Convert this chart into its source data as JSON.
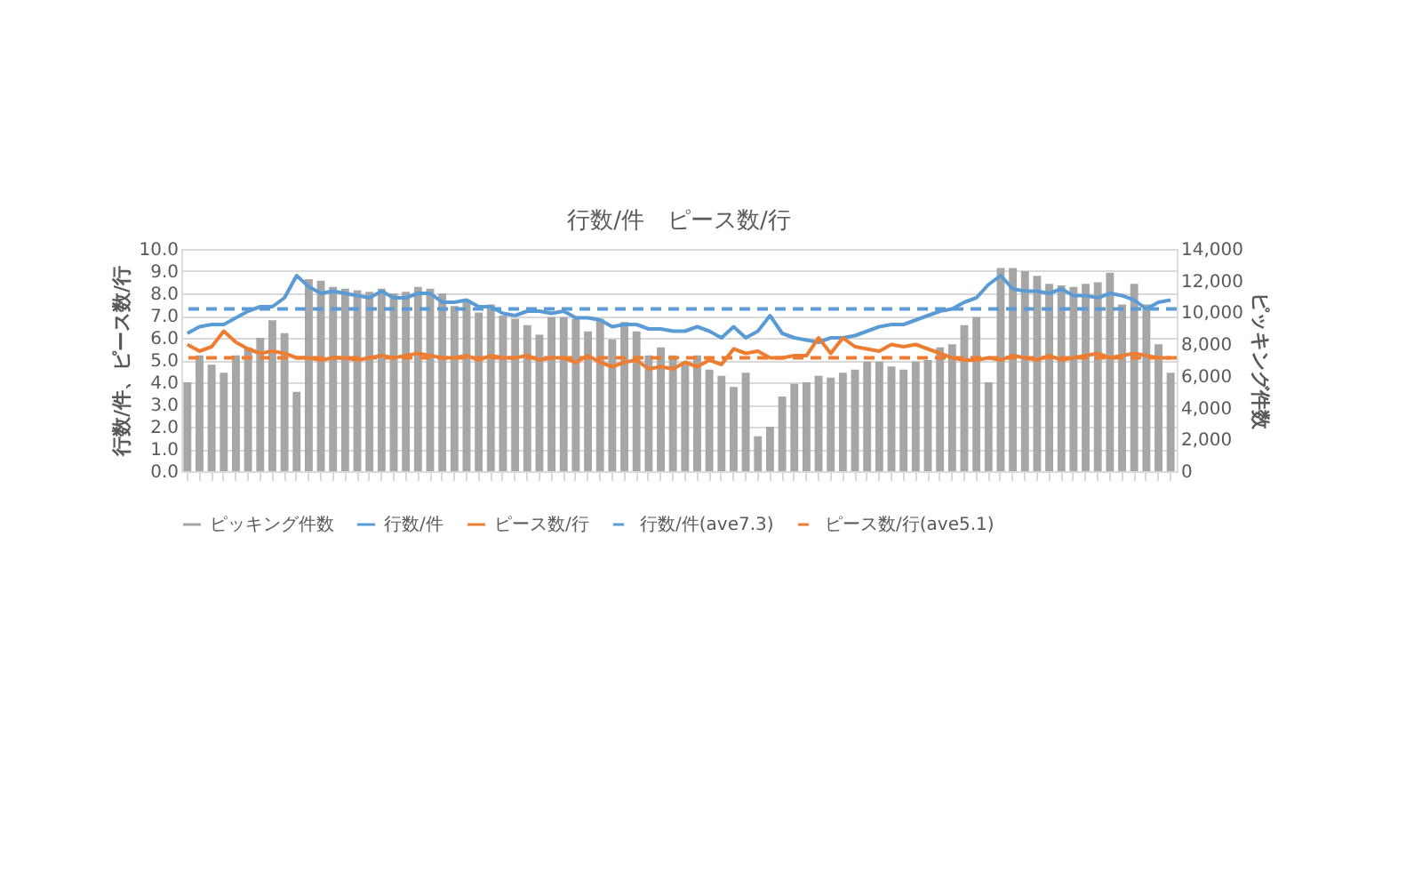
{
  "chart_data": {
    "type": "bar",
    "title": "行数/件　ピース数/行",
    "ylabel": "行数/件、ピース数/行",
    "y2label": "ピッキング件数",
    "categories": [
      null,
      null,
      null,
      null,
      null,
      null,
      null,
      null,
      null,
      null,
      null,
      null,
      null,
      null,
      null,
      null,
      null,
      null,
      null,
      null,
      null,
      null,
      null,
      null,
      null,
      null,
      null,
      null,
      null,
      null,
      null,
      null,
      null,
      null,
      null,
      null,
      null,
      null,
      null,
      null,
      null,
      null,
      null,
      null,
      null,
      null,
      null,
      null,
      null,
      null,
      null,
      null,
      null,
      null,
      null,
      null,
      null,
      null,
      null,
      null,
      null,
      null,
      null,
      null,
      null,
      null,
      null,
      null,
      null,
      null,
      null,
      null,
      null,
      null,
      null,
      null,
      null,
      null,
      null,
      null,
      null,
      null
    ],
    "series": [
      {
        "name": "ピッキング件数",
        "axis": "y2",
        "color": "#a6a6a6",
        "values": [
          5600,
          7300,
          6700,
          6200,
          7300,
          7800,
          8400,
          9500,
          8700,
          5000,
          12100,
          12000,
          11600,
          11500,
          11400,
          11300,
          11500,
          11200,
          11300,
          11600,
          11500,
          11200,
          10400,
          10800,
          10000,
          10500,
          9800,
          9600,
          9200,
          8600,
          9700,
          9700,
          9600,
          8800,
          9600,
          8300,
          9400,
          8800,
          7300,
          7800,
          7300,
          6700,
          7300,
          6400,
          6000,
          5300,
          6200,
          2200,
          2800,
          4700,
          5500,
          5600,
          6000,
          5900,
          6200,
          6400,
          6900,
          6900,
          6600,
          6400,
          6900,
          7000,
          7800,
          8000,
          9200,
          9700,
          5600,
          12800,
          12800,
          12600,
          12300,
          11800,
          11700,
          11600,
          11800,
          11900,
          12500,
          10500,
          11800,
          10500,
          8000,
          6200
        ]
      },
      {
        "name": "行数/件",
        "type": "line",
        "color": "#5b9bd5",
        "values": [
          6.2,
          6.5,
          6.6,
          6.6,
          6.9,
          7.2,
          7.4,
          7.4,
          7.8,
          8.8,
          8.3,
          8.0,
          8.1,
          8.0,
          7.9,
          7.8,
          8.1,
          7.8,
          7.8,
          8.0,
          8.0,
          7.6,
          7.6,
          7.7,
          7.4,
          7.4,
          7.1,
          7.0,
          7.2,
          7.2,
          7.1,
          7.2,
          6.9,
          6.9,
          6.8,
          6.5,
          6.6,
          6.6,
          6.4,
          6.4,
          6.3,
          6.3,
          6.5,
          6.3,
          6.0,
          6.5,
          6.0,
          6.3,
          7.0,
          6.2,
          6.0,
          5.9,
          5.8,
          6.0,
          6.0,
          6.1,
          6.3,
          6.5,
          6.6,
          6.6,
          6.8,
          7.0,
          7.2,
          7.3,
          7.6,
          7.8,
          8.4,
          8.8,
          8.2,
          8.1,
          8.1,
          8.0,
          8.2,
          7.9,
          7.9,
          7.8,
          8.0,
          7.9,
          7.7,
          7.3,
          7.6,
          7.7
        ]
      },
      {
        "name": "ピース数/行",
        "type": "line",
        "color": "#ed7d31",
        "values": [
          5.7,
          5.4,
          5.6,
          6.3,
          5.8,
          5.5,
          5.3,
          5.4,
          5.3,
          5.1,
          5.1,
          5.0,
          5.1,
          5.1,
          5.0,
          5.1,
          5.2,
          5.1,
          5.2,
          5.3,
          5.2,
          5.1,
          5.1,
          5.2,
          5.0,
          5.2,
          5.1,
          5.1,
          5.2,
          5.0,
          5.1,
          5.1,
          4.9,
          5.2,
          4.9,
          4.7,
          4.9,
          5.0,
          4.6,
          4.7,
          4.6,
          4.9,
          4.7,
          5.0,
          4.8,
          5.5,
          5.3,
          5.4,
          5.1,
          5.1,
          5.2,
          5.2,
          6.0,
          5.3,
          6.0,
          5.6,
          5.5,
          5.4,
          5.7,
          5.6,
          5.7,
          5.5,
          5.3,
          5.1,
          5.0,
          5.0,
          5.1,
          5.0,
          5.2,
          5.1,
          5.0,
          5.2,
          5.0,
          5.1,
          5.2,
          5.3,
          5.1,
          5.2,
          5.3,
          5.2,
          5.1,
          5.1
        ]
      }
    ],
    "ref_lines": [
      {
        "axis": "y",
        "value": 7.3,
        "label": "行数/件(ave7.3)",
        "color": "#5b9bd5",
        "line_style": "dashed"
      },
      {
        "axis": "y",
        "value": 5.1,
        "label": "ピース数/行(ave5.1)",
        "color": "#ed7d31",
        "line_style": "dashed"
      }
    ],
    "ylim": [
      0,
      10
    ],
    "yticks": [
      {
        "value": 0,
        "label": "0.0"
      },
      {
        "value": 1,
        "label": "1.0"
      },
      {
        "value": 2,
        "label": "2.0"
      },
      {
        "value": 3,
        "label": "3.0"
      },
      {
        "value": 4,
        "label": "4.0"
      },
      {
        "value": 5,
        "label": "5.0"
      },
      {
        "value": 6,
        "label": "6.0"
      },
      {
        "value": 7,
        "label": "7.0"
      },
      {
        "value": 8,
        "label": "8.0"
      },
      {
        "value": 9,
        "label": "9.0"
      },
      {
        "value": 10,
        "label": "10.0"
      }
    ],
    "y2lim": [
      0,
      14000
    ],
    "y2ticks": [
      0,
      {
        "value": 2000,
        "label": "2,000"
      },
      {
        "value": 4000,
        "label": "4,000"
      },
      {
        "value": 6000,
        "label": "6,000"
      },
      {
        "value": 8000,
        "label": "8,000"
      },
      {
        "value": 10000,
        "label": "10,000"
      },
      {
        "value": 12000,
        "label": "12,000"
      },
      {
        "value": 14000,
        "label": "14,000"
      }
    ],
    "grid": "y",
    "legend": "bottom",
    "tick_labels": "y"
  }
}
